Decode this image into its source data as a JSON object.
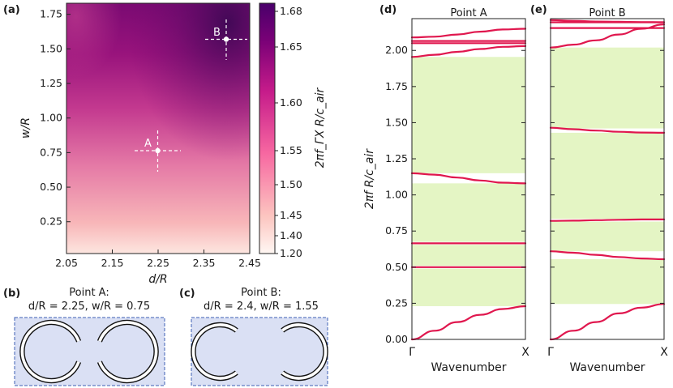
{
  "figure": {
    "panel_labels": [
      "(a)",
      "(b)",
      "(c)",
      "(d)",
      "(e)"
    ],
    "inset_b_title": "Point A:",
    "inset_b_params": "d/R = 2.25, w/R = 0.75",
    "inset_c_title": "Point B:",
    "inset_c_params": "d/R = 2.4, w/R = 1.55",
    "heatmap_xlabel": "d/R",
    "heatmap_ylabel": "w/R",
    "colorbar_label": "2πf_ΓX R/c_air",
    "bands_ylabel": "2πf R/c_air",
    "bands_xlabel": "Wavenumber",
    "title_d": "Point A",
    "title_e": "Point B",
    "marker_a": "A",
    "marker_b": "B",
    "colors": {
      "band_line": "#e0174e",
      "gap_fill": "#e4f5c4",
      "inset_fill": "#dae0f4",
      "inset_border": "#3e5fb5",
      "heat_low": "#fde6e0",
      "heat_high": "#4b0a58"
    }
  },
  "chart_data": [
    {
      "type": "heatmap",
      "panel": "(a)",
      "xlabel": "d/R",
      "ylabel": "w/R",
      "xlim": [
        2.05,
        2.45
      ],
      "ylim": [
        0.02,
        1.83
      ],
      "xticks": [
        "2.05",
        "2.15",
        "2.25",
        "2.35",
        "2.45"
      ],
      "yticks": [
        "0.25",
        "0.50",
        "0.75",
        "1.00",
        "1.25",
        "1.50",
        "1.75"
      ],
      "colorbar": {
        "label": "2πf_ΓX R/c_air",
        "range": [
          1.2,
          1.685
        ],
        "ticks": [
          "1.20",
          "1.40",
          "1.45",
          "1.50",
          "1.55",
          "1.60",
          "1.65",
          "1.68"
        ]
      },
      "points": [
        {
          "name": "A",
          "x": 2.25,
          "y": 0.75
        },
        {
          "name": "B",
          "x": 2.4,
          "y": 1.55
        }
      ]
    },
    {
      "type": "line",
      "panel": "(d)",
      "title": "Point A",
      "xlabel": "Wavenumber",
      "ylabel": "2πf R/c_air",
      "xticks": [
        "Γ",
        "X"
      ],
      "ylim": [
        0,
        2.22
      ],
      "yticks": [
        "0.00",
        "0.25",
        "0.50",
        "0.75",
        "1.00",
        "1.25",
        "1.50",
        "1.75",
        "2.00"
      ],
      "band_gaps": [
        [
          0.23,
          0.49
        ],
        [
          0.51,
          0.655
        ],
        [
          0.675,
          1.08
        ],
        [
          1.15,
          1.955
        ]
      ],
      "series": [
        {
          "name": "band-1",
          "values": [
            0.0,
            0.06,
            0.12,
            0.17,
            0.21,
            0.23
          ]
        },
        {
          "name": "band-2",
          "values": [
            0.5,
            0.5,
            0.5,
            0.5,
            0.5,
            0.5
          ]
        },
        {
          "name": "band-3",
          "values": [
            0.665,
            0.665,
            0.665,
            0.665,
            0.665,
            0.665
          ]
        },
        {
          "name": "band-4",
          "values": [
            1.15,
            1.14,
            1.12,
            1.1,
            1.085,
            1.08
          ]
        },
        {
          "name": "band-5",
          "values": [
            1.955,
            1.97,
            1.99,
            2.01,
            2.025,
            2.03
          ]
        },
        {
          "name": "band-6",
          "values": [
            2.05,
            2.05,
            2.05,
            2.05,
            2.05,
            2.05
          ]
        },
        {
          "name": "band-7",
          "values": [
            2.065,
            2.065,
            2.065,
            2.065,
            2.065,
            2.065
          ]
        },
        {
          "name": "band-8",
          "values": [
            2.09,
            2.095,
            2.11,
            2.13,
            2.145,
            2.15
          ]
        }
      ]
    },
    {
      "type": "line",
      "panel": "(e)",
      "title": "Point B",
      "xlabel": "Wavenumber",
      "xticks": [
        "Γ",
        "X"
      ],
      "ylim": [
        0,
        2.22
      ],
      "band_gaps": [
        [
          0.245,
          0.555
        ],
        [
          0.61,
          0.815
        ],
        [
          0.835,
          1.43
        ],
        [
          1.46,
          2.02
        ]
      ],
      "series": [
        {
          "name": "band-1",
          "values": [
            0.0,
            0.06,
            0.12,
            0.18,
            0.22,
            0.245
          ]
        },
        {
          "name": "band-2",
          "values": [
            0.61,
            0.6,
            0.585,
            0.57,
            0.56,
            0.555
          ]
        },
        {
          "name": "band-3",
          "values": [
            0.82,
            0.822,
            0.825,
            0.828,
            0.83,
            0.83
          ]
        },
        {
          "name": "band-4",
          "values": [
            1.465,
            1.455,
            1.445,
            1.437,
            1.432,
            1.43
          ]
        },
        {
          "name": "band-5",
          "values": [
            2.02,
            2.04,
            2.07,
            2.11,
            2.15,
            2.18
          ]
        },
        {
          "name": "band-6",
          "values": [
            2.155,
            2.155,
            2.155,
            2.155,
            2.155,
            2.155
          ]
        },
        {
          "name": "band-7",
          "values": [
            2.195,
            2.195,
            2.195,
            2.195,
            2.195,
            2.195
          ]
        },
        {
          "name": "band-8",
          "values": [
            2.21,
            2.205,
            2.2,
            2.198,
            2.196,
            2.195
          ]
        }
      ]
    }
  ]
}
